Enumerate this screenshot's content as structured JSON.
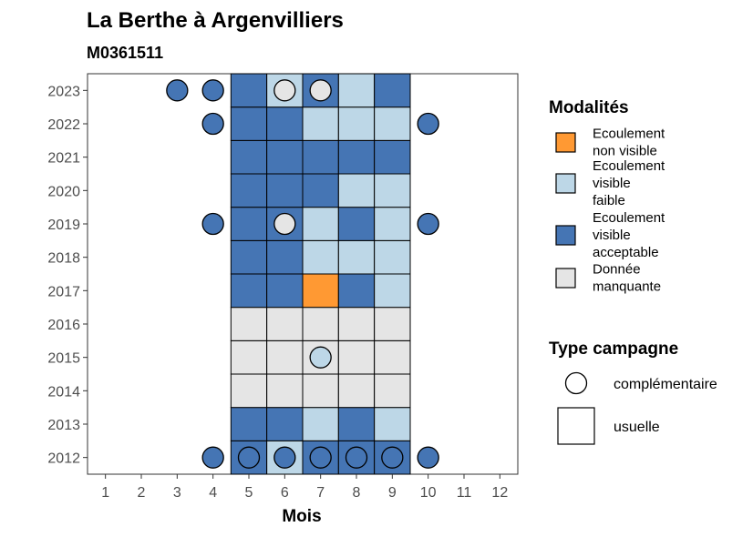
{
  "chart_data": {
    "type": "heatmap",
    "title": "La Berthe à Argenvilliers",
    "subtitle": "M0361511",
    "xlabel": "Mois",
    "ylabel": "",
    "x_ticks": [
      "1",
      "2",
      "3",
      "4",
      "5",
      "6",
      "7",
      "8",
      "9",
      "10",
      "11",
      "12"
    ],
    "y_ticks": [
      "2012",
      "2013",
      "2014",
      "2015",
      "2016",
      "2017",
      "2018",
      "2019",
      "2020",
      "2021",
      "2022",
      "2023"
    ],
    "xlim": [
      0.5,
      12.5
    ],
    "ylim": [
      2011.5,
      2023.5
    ],
    "grid": false,
    "legend_position": "right",
    "legend_modalites": {
      "title": "Modalités",
      "items": [
        {
          "key": "nv",
          "lines": [
            "Ecoulement",
            "non visible"
          ],
          "color": "#FF9933"
        },
        {
          "key": "vf",
          "lines": [
            "Ecoulement",
            "visible",
            "faible"
          ],
          "color": "#BDD7E7"
        },
        {
          "key": "va",
          "lines": [
            "Ecoulement",
            "visible",
            "acceptable"
          ],
          "color": "#4575B4"
        },
        {
          "key": "dm",
          "lines": [
            "Donnée",
            "manquante"
          ],
          "color": "#E5E5E5"
        }
      ]
    },
    "legend_campagne": {
      "title": "Type campagne",
      "items": [
        {
          "key": "complementaire",
          "label": "complémentaire",
          "shape": "circle"
        },
        {
          "key": "usuelle",
          "label": "usuelle",
          "shape": "square"
        }
      ]
    },
    "usuelle_cells": {
      "2023": {
        "5": "va",
        "6": "vf",
        "7": "va",
        "8": "vf",
        "9": "va"
      },
      "2022": {
        "5": "va",
        "6": "va",
        "7": "vf",
        "8": "vf",
        "9": "vf"
      },
      "2021": {
        "5": "va",
        "6": "va",
        "7": "va",
        "8": "va",
        "9": "va"
      },
      "2020": {
        "5": "va",
        "6": "va",
        "7": "va",
        "8": "vf",
        "9": "vf"
      },
      "2019": {
        "5": "va",
        "6": "va",
        "7": "vf",
        "8": "va",
        "9": "vf"
      },
      "2018": {
        "5": "va",
        "6": "va",
        "7": "vf",
        "8": "vf",
        "9": "vf"
      },
      "2017": {
        "5": "va",
        "6": "va",
        "7": "nv",
        "8": "va",
        "9": "vf"
      },
      "2016": {
        "5": "dm",
        "6": "dm",
        "7": "dm",
        "8": "dm",
        "9": "dm"
      },
      "2015": {
        "5": "dm",
        "6": "dm",
        "7": "dm",
        "8": "dm",
        "9": "dm"
      },
      "2014": {
        "5": "dm",
        "6": "dm",
        "7": "dm",
        "8": "dm",
        "9": "dm"
      },
      "2013": {
        "5": "va",
        "6": "va",
        "7": "vf",
        "8": "va",
        "9": "vf"
      },
      "2012": {
        "5": "va",
        "6": "vf",
        "7": "va",
        "8": "va",
        "9": "va"
      }
    },
    "complementaire_points": [
      {
        "year": 2023,
        "month": 3,
        "mod": "va"
      },
      {
        "year": 2023,
        "month": 4,
        "mod": "va"
      },
      {
        "year": 2023,
        "month": 6,
        "mod": "dm"
      },
      {
        "year": 2023,
        "month": 7,
        "mod": "dm"
      },
      {
        "year": 2022,
        "month": 4,
        "mod": "va"
      },
      {
        "year": 2022,
        "month": 10,
        "mod": "va"
      },
      {
        "year": 2019,
        "month": 4,
        "mod": "va"
      },
      {
        "year": 2019,
        "month": 6,
        "mod": "dm"
      },
      {
        "year": 2019,
        "month": 10,
        "mod": "va"
      },
      {
        "year": 2015,
        "month": 7,
        "mod": "vf"
      },
      {
        "year": 2012,
        "month": 4,
        "mod": "va"
      },
      {
        "year": 2012,
        "month": 5,
        "mod": "va"
      },
      {
        "year": 2012,
        "month": 6,
        "mod": "va"
      },
      {
        "year": 2012,
        "month": 7,
        "mod": "va"
      },
      {
        "year": 2012,
        "month": 8,
        "mod": "va"
      },
      {
        "year": 2012,
        "month": 9,
        "mod": "va"
      },
      {
        "year": 2012,
        "month": 10,
        "mod": "va"
      }
    ]
  }
}
